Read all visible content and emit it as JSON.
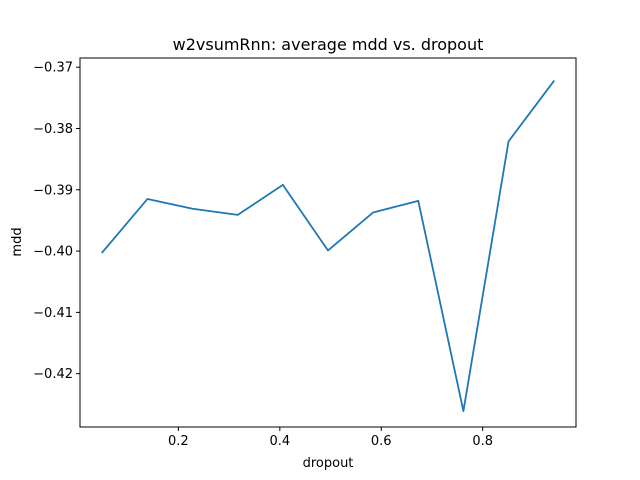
{
  "chart_data": {
    "type": "line",
    "title": "w2vsumRnn: average mdd vs. dropout",
    "xlabel": "dropout",
    "ylabel": "mdd",
    "xlim": [
      0.006,
      0.984
    ],
    "ylim": [
      -0.4287,
      -0.3685
    ],
    "xticks": [
      0.2,
      0.4,
      0.6,
      0.8
    ],
    "xtick_labels": [
      "0.2",
      "0.4",
      "0.6",
      "0.8"
    ],
    "yticks": [
      -0.42,
      -0.41,
      -0.4,
      -0.39,
      -0.38,
      -0.37
    ],
    "ytick_labels": [
      "−0.42",
      "−0.41",
      "−0.40",
      "−0.39",
      "−0.38",
      "−0.37"
    ],
    "grid": false,
    "series": [
      {
        "color": "#1f77b4",
        "x": [
          0.05,
          0.139,
          0.228,
          0.317,
          0.406,
          0.495,
          0.584,
          0.673,
          0.762,
          0.851,
          0.94
        ],
        "y": [
          -0.4002,
          -0.3915,
          -0.3931,
          -0.3941,
          -0.3892,
          -0.3999,
          -0.3937,
          -0.3918,
          -0.4261,
          -0.3821,
          -0.3723
        ]
      }
    ]
  }
}
